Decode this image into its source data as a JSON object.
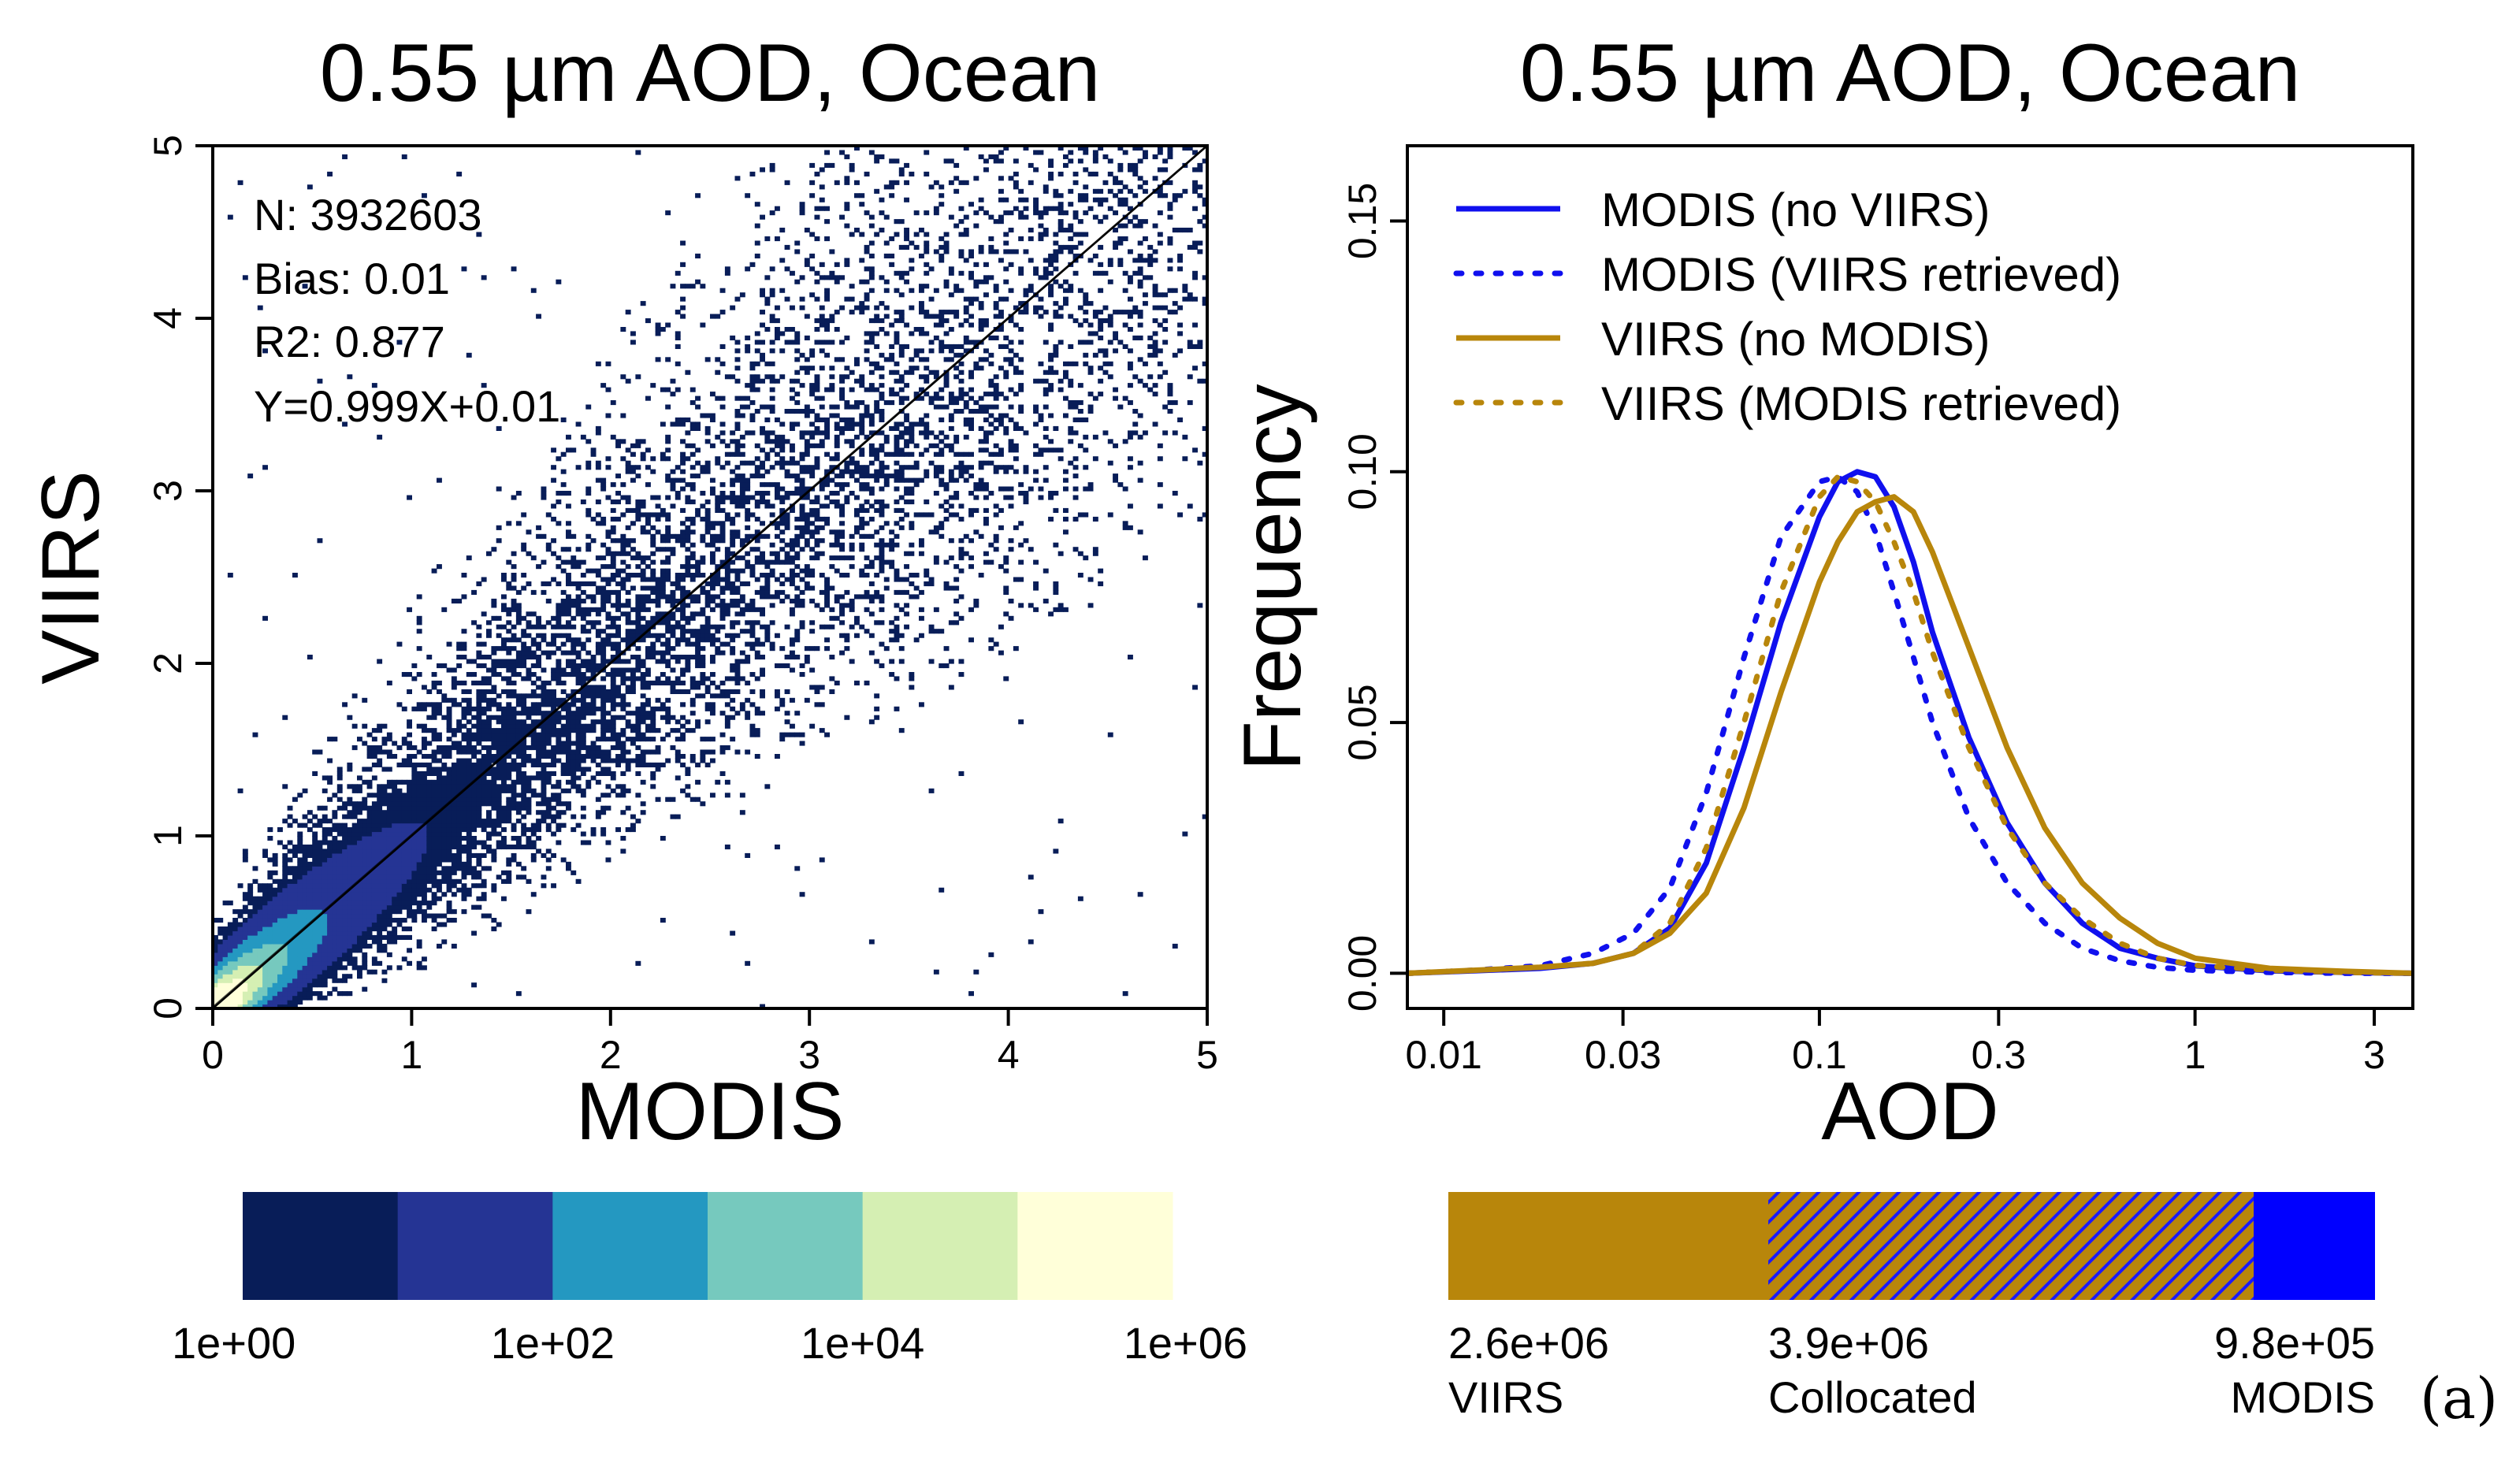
{
  "figure_label": "(a)",
  "chart_data": [
    {
      "type": "heatmap",
      "title": "0.55 µm AOD, Ocean",
      "xlabel": "MODIS",
      "ylabel": "VIIRS",
      "xlim": [
        0,
        5
      ],
      "ylim": [
        0,
        5
      ],
      "xticks": [
        "0",
        "1",
        "2",
        "3",
        "4",
        "5"
      ],
      "yticks": [
        "0",
        "1",
        "2",
        "3",
        "4",
        "5"
      ],
      "stats": {
        "n": "N: 3932603",
        "bias": "Bias: 0.01",
        "r2": "R2: 0.877",
        "fit": "Y=0.999X+0.01"
      },
      "one_to_one_line": true,
      "fit_line": {
        "slope": 0.999,
        "intercept": 0.01
      },
      "colorbar": {
        "colors": [
          "#081d58",
          "#253494",
          "#2498c1",
          "#76c9be",
          "#d5efb3",
          "#ffffd9"
        ],
        "labels": [
          "1e+00",
          "1e+02",
          "1e+04",
          "1e+06"
        ],
        "label_positions": [
          0,
          2,
          4,
          6
        ],
        "scale": "log10 counts"
      }
    },
    {
      "type": "line",
      "title": "0.55 µm AOD, Ocean",
      "xlabel": "AOD",
      "ylabel": "Frequency",
      "xscale": "log",
      "xlim": [
        0.008,
        3.8
      ],
      "ylim": [
        -0.007,
        0.165
      ],
      "xticks": [
        {
          "value": 0.01,
          "label": "0.01"
        },
        {
          "value": 0.03,
          "label": "0.03"
        },
        {
          "value": 0.1,
          "label": "0.1"
        },
        {
          "value": 0.3,
          "label": "0.3"
        },
        {
          "value": 1,
          "label": "1"
        },
        {
          "value": 3,
          "label": "3"
        }
      ],
      "yticks": [
        {
          "value": 0.0,
          "label": "0.00"
        },
        {
          "value": 0.05,
          "label": "0.05"
        },
        {
          "value": 0.1,
          "label": "0.10"
        },
        {
          "value": 0.15,
          "label": "0.15"
        }
      ],
      "legend_position": "top-left",
      "series": [
        {
          "name": "MODIS (no VIIRS)",
          "color": "#1010ee",
          "dash": "solid",
          "x": [
            0.008,
            0.012,
            0.018,
            0.025,
            0.032,
            0.04,
            0.05,
            0.063,
            0.079,
            0.1,
            0.112,
            0.126,
            0.141,
            0.158,
            0.178,
            0.2,
            0.25,
            0.316,
            0.398,
            0.501,
            0.631,
            0.794,
            1.0,
            1.58,
            2.51,
            3.8
          ],
          "y": [
            0.0,
            0.0005,
            0.001,
            0.002,
            0.004,
            0.009,
            0.022,
            0.045,
            0.07,
            0.091,
            0.098,
            0.1,
            0.099,
            0.093,
            0.082,
            0.068,
            0.047,
            0.03,
            0.018,
            0.01,
            0.005,
            0.003,
            0.0015,
            0.0005,
            0.0002,
            0.0
          ]
        },
        {
          "name": "MODIS (VIIRS retrieved)",
          "color": "#1010ee",
          "dash": "dotted",
          "x": [
            0.008,
            0.012,
            0.018,
            0.025,
            0.032,
            0.04,
            0.05,
            0.063,
            0.079,
            0.1,
            0.112,
            0.126,
            0.141,
            0.158,
            0.178,
            0.2,
            0.25,
            0.316,
            0.398,
            0.501,
            0.631,
            0.794,
            1.0,
            1.58,
            2.51,
            3.8
          ],
          "y": [
            0.0,
            0.0006,
            0.0015,
            0.004,
            0.008,
            0.017,
            0.036,
            0.063,
            0.087,
            0.098,
            0.099,
            0.096,
            0.088,
            0.076,
            0.063,
            0.05,
            0.031,
            0.018,
            0.01,
            0.005,
            0.0025,
            0.0012,
            0.0006,
            0.0002,
            0.0,
            0.0
          ]
        },
        {
          "name": "VIIRS (no MODIS)",
          "color": "#b8860b",
          "dash": "solid",
          "x": [
            0.008,
            0.012,
            0.018,
            0.025,
            0.032,
            0.04,
            0.05,
            0.063,
            0.079,
            0.1,
            0.112,
            0.126,
            0.141,
            0.158,
            0.178,
            0.2,
            0.25,
            0.316,
            0.398,
            0.501,
            0.631,
            0.794,
            1.0,
            1.58,
            2.51,
            3.8
          ],
          "y": [
            0.0,
            0.0006,
            0.0012,
            0.002,
            0.004,
            0.008,
            0.016,
            0.033,
            0.056,
            0.078,
            0.086,
            0.092,
            0.094,
            0.095,
            0.092,
            0.084,
            0.065,
            0.045,
            0.029,
            0.018,
            0.011,
            0.006,
            0.003,
            0.001,
            0.0004,
            0.0
          ]
        },
        {
          "name": "VIIRS (MODIS retrieved)",
          "color": "#b8860b",
          "dash": "dotted",
          "x": [
            0.008,
            0.012,
            0.018,
            0.025,
            0.032,
            0.04,
            0.05,
            0.063,
            0.079,
            0.1,
            0.112,
            0.126,
            0.141,
            0.158,
            0.178,
            0.2,
            0.25,
            0.316,
            0.398,
            0.501,
            0.631,
            0.794,
            1.0,
            1.58,
            2.51,
            3.8
          ],
          "y": [
            0.0,
            0.0006,
            0.0012,
            0.002,
            0.004,
            0.01,
            0.025,
            0.05,
            0.076,
            0.095,
            0.099,
            0.098,
            0.094,
            0.086,
            0.076,
            0.064,
            0.045,
            0.029,
            0.018,
            0.011,
            0.006,
            0.003,
            0.0016,
            0.0006,
            0.0002,
            0.0
          ]
        }
      ],
      "count_bar": {
        "segments": [
          {
            "label": "VIIRS",
            "value": "2.6e+06",
            "count": 2600000,
            "color": "#b8860b",
            "pattern": "solid"
          },
          {
            "label": "Collocated",
            "value": "3.9e+06",
            "count": 3900000,
            "color": "#b8860b",
            "pattern": "hatched-blue"
          },
          {
            "label": "MODIS",
            "value": "9.8e+05",
            "count": 980000,
            "color": "#0000ff",
            "pattern": "solid"
          }
        ]
      }
    }
  ]
}
